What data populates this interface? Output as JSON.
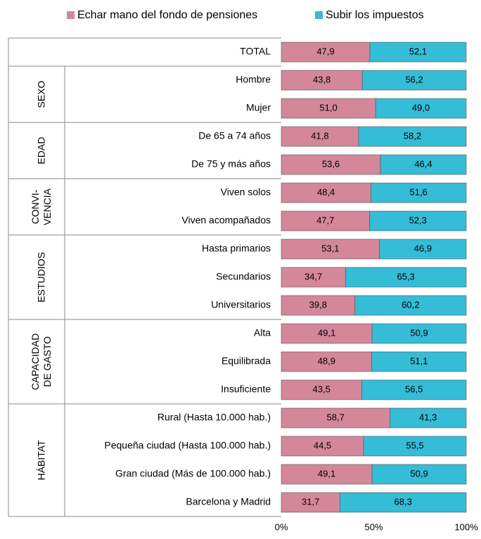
{
  "chart_data": {
    "type": "stacked-bar-horizontal",
    "groups": [
      {
        "label_lines": null,
        "categories": [
          "TOTAL"
        ]
      },
      {
        "label_lines": [
          "SEXO"
        ],
        "categories": [
          "Hombre",
          "Mujer"
        ]
      },
      {
        "label_lines": [
          "EDAD"
        ],
        "categories": [
          "De 65 a 74 años",
          "De 75 y más  años"
        ]
      },
      {
        "label_lines": [
          "CONVI-",
          "VENCIA"
        ],
        "categories": [
          "Viven solos",
          "Viven acompañados"
        ]
      },
      {
        "label_lines": [
          "ESTUDIOS"
        ],
        "categories": [
          "Hasta primarios",
          "Secundarios",
          "Universitarios"
        ]
      },
      {
        "label_lines": [
          "CAPACIDAD",
          "DE GASTO"
        ],
        "categories": [
          "Alta",
          "Equilibrada",
          "Insuficiente"
        ]
      },
      {
        "label_lines": [
          "HÁBITAT"
        ],
        "categories": [
          "Rural (Hasta  10.000 hab.)",
          "Pequeña ciudad (Hasta  100.000 hab.)",
          "Gran ciudad  (Más de 100.000 hab.)",
          "Barcelona y Madrid"
        ]
      }
    ],
    "series": [
      {
        "name": "Echar mano del fondo de pensiones",
        "color": "#d4879a",
        "values": [
          47.9,
          43.8,
          51.0,
          41.8,
          53.6,
          48.4,
          47.7,
          53.1,
          34.7,
          39.8,
          49.1,
          48.9,
          43.5,
          58.7,
          44.5,
          49.1,
          31.7
        ],
        "value_labels": [
          "47,9",
          "43,8",
          "51,0",
          "41,8",
          "53,6",
          "48,4",
          "47,7",
          "53,1",
          "34,7",
          "39,8",
          "49,1",
          "48,9",
          "43,5",
          "58,7",
          "44,5",
          "49,1",
          "31,7"
        ]
      },
      {
        "name": "Subir los impuestos",
        "color": "#35bcd6",
        "values": [
          52.1,
          56.2,
          49.0,
          58.2,
          46.4,
          51.6,
          52.3,
          46.9,
          65.3,
          60.2,
          50.9,
          51.1,
          56.5,
          41.3,
          55.5,
          50.9,
          68.3
        ],
        "value_labels": [
          "52,1",
          "56,2",
          "49,0",
          "58,2",
          "46,4",
          "51,6",
          "52,3",
          "46,9",
          "65,3",
          "60,2",
          "50,9",
          "51,1",
          "56,5",
          "41,3",
          "55,5",
          "50,9",
          "68,3"
        ]
      }
    ],
    "xlim": [
      0,
      100
    ],
    "xticks": [
      {
        "value": 0,
        "label": "0%"
      },
      {
        "value": 50,
        "label": "50%"
      },
      {
        "value": 100,
        "label": "100%"
      }
    ]
  }
}
